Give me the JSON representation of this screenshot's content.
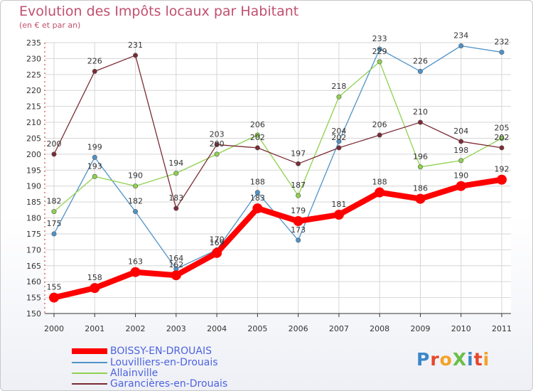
{
  "chart_data": {
    "type": "line",
    "title": "Evolution des Impôts locaux par Habitant",
    "subtitle": "(en € et par an)",
    "x": [
      "2000",
      "2001",
      "2002",
      "2003",
      "2004",
      "2005",
      "2006",
      "2007",
      "2008",
      "2009",
      "2010",
      "2011"
    ],
    "yticks": [
      150,
      155,
      160,
      165,
      170,
      175,
      180,
      185,
      190,
      195,
      200,
      205,
      210,
      215,
      220,
      225,
      230,
      235
    ],
    "ylim": [
      150,
      235
    ],
    "series": [
      {
        "name": "Louvilliers-en-Drouais",
        "color": "#4f93c8",
        "values": [
          175,
          199,
          182,
          164,
          170,
          188,
          173,
          204,
          233,
          226,
          234,
          232
        ]
      },
      {
        "name": "Allainville",
        "color": "#8fd14f",
        "values": [
          182,
          193,
          190,
          194,
          200,
          206,
          187,
          218,
          229,
          196,
          198,
          205
        ]
      },
      {
        "name": "Garancières-en-Drouais",
        "color": "#7a2c35",
        "values": [
          200,
          226,
          231,
          183,
          203,
          202,
          197,
          202,
          206,
          210,
          204,
          202
        ]
      },
      {
        "name": "BOISSY-EN-DROUAIS",
        "color": "#ff0000",
        "values": [
          155,
          158,
          163,
          162,
          169,
          183,
          179,
          181,
          188,
          186,
          190,
          192
        ]
      }
    ]
  },
  "legend": [
    {
      "label": "BOISSY-EN-DROUAIS",
      "color": "#ff0000",
      "weight": 8
    },
    {
      "label": "Louvilliers-en-Drouais",
      "color": "#4f93c8",
      "weight": 2
    },
    {
      "label": "Allainville",
      "color": "#8fd14f",
      "weight": 2
    },
    {
      "label": "Garancières-en-Drouais",
      "color": "#7a2c35",
      "weight": 2
    }
  ],
  "logo": {
    "text": "ProXiti",
    "colors": [
      "#3b87c9",
      "#e8462b",
      "#f4a225",
      "#6abf45",
      "#3b87c9",
      "#e8462b",
      "#f4a225"
    ]
  }
}
